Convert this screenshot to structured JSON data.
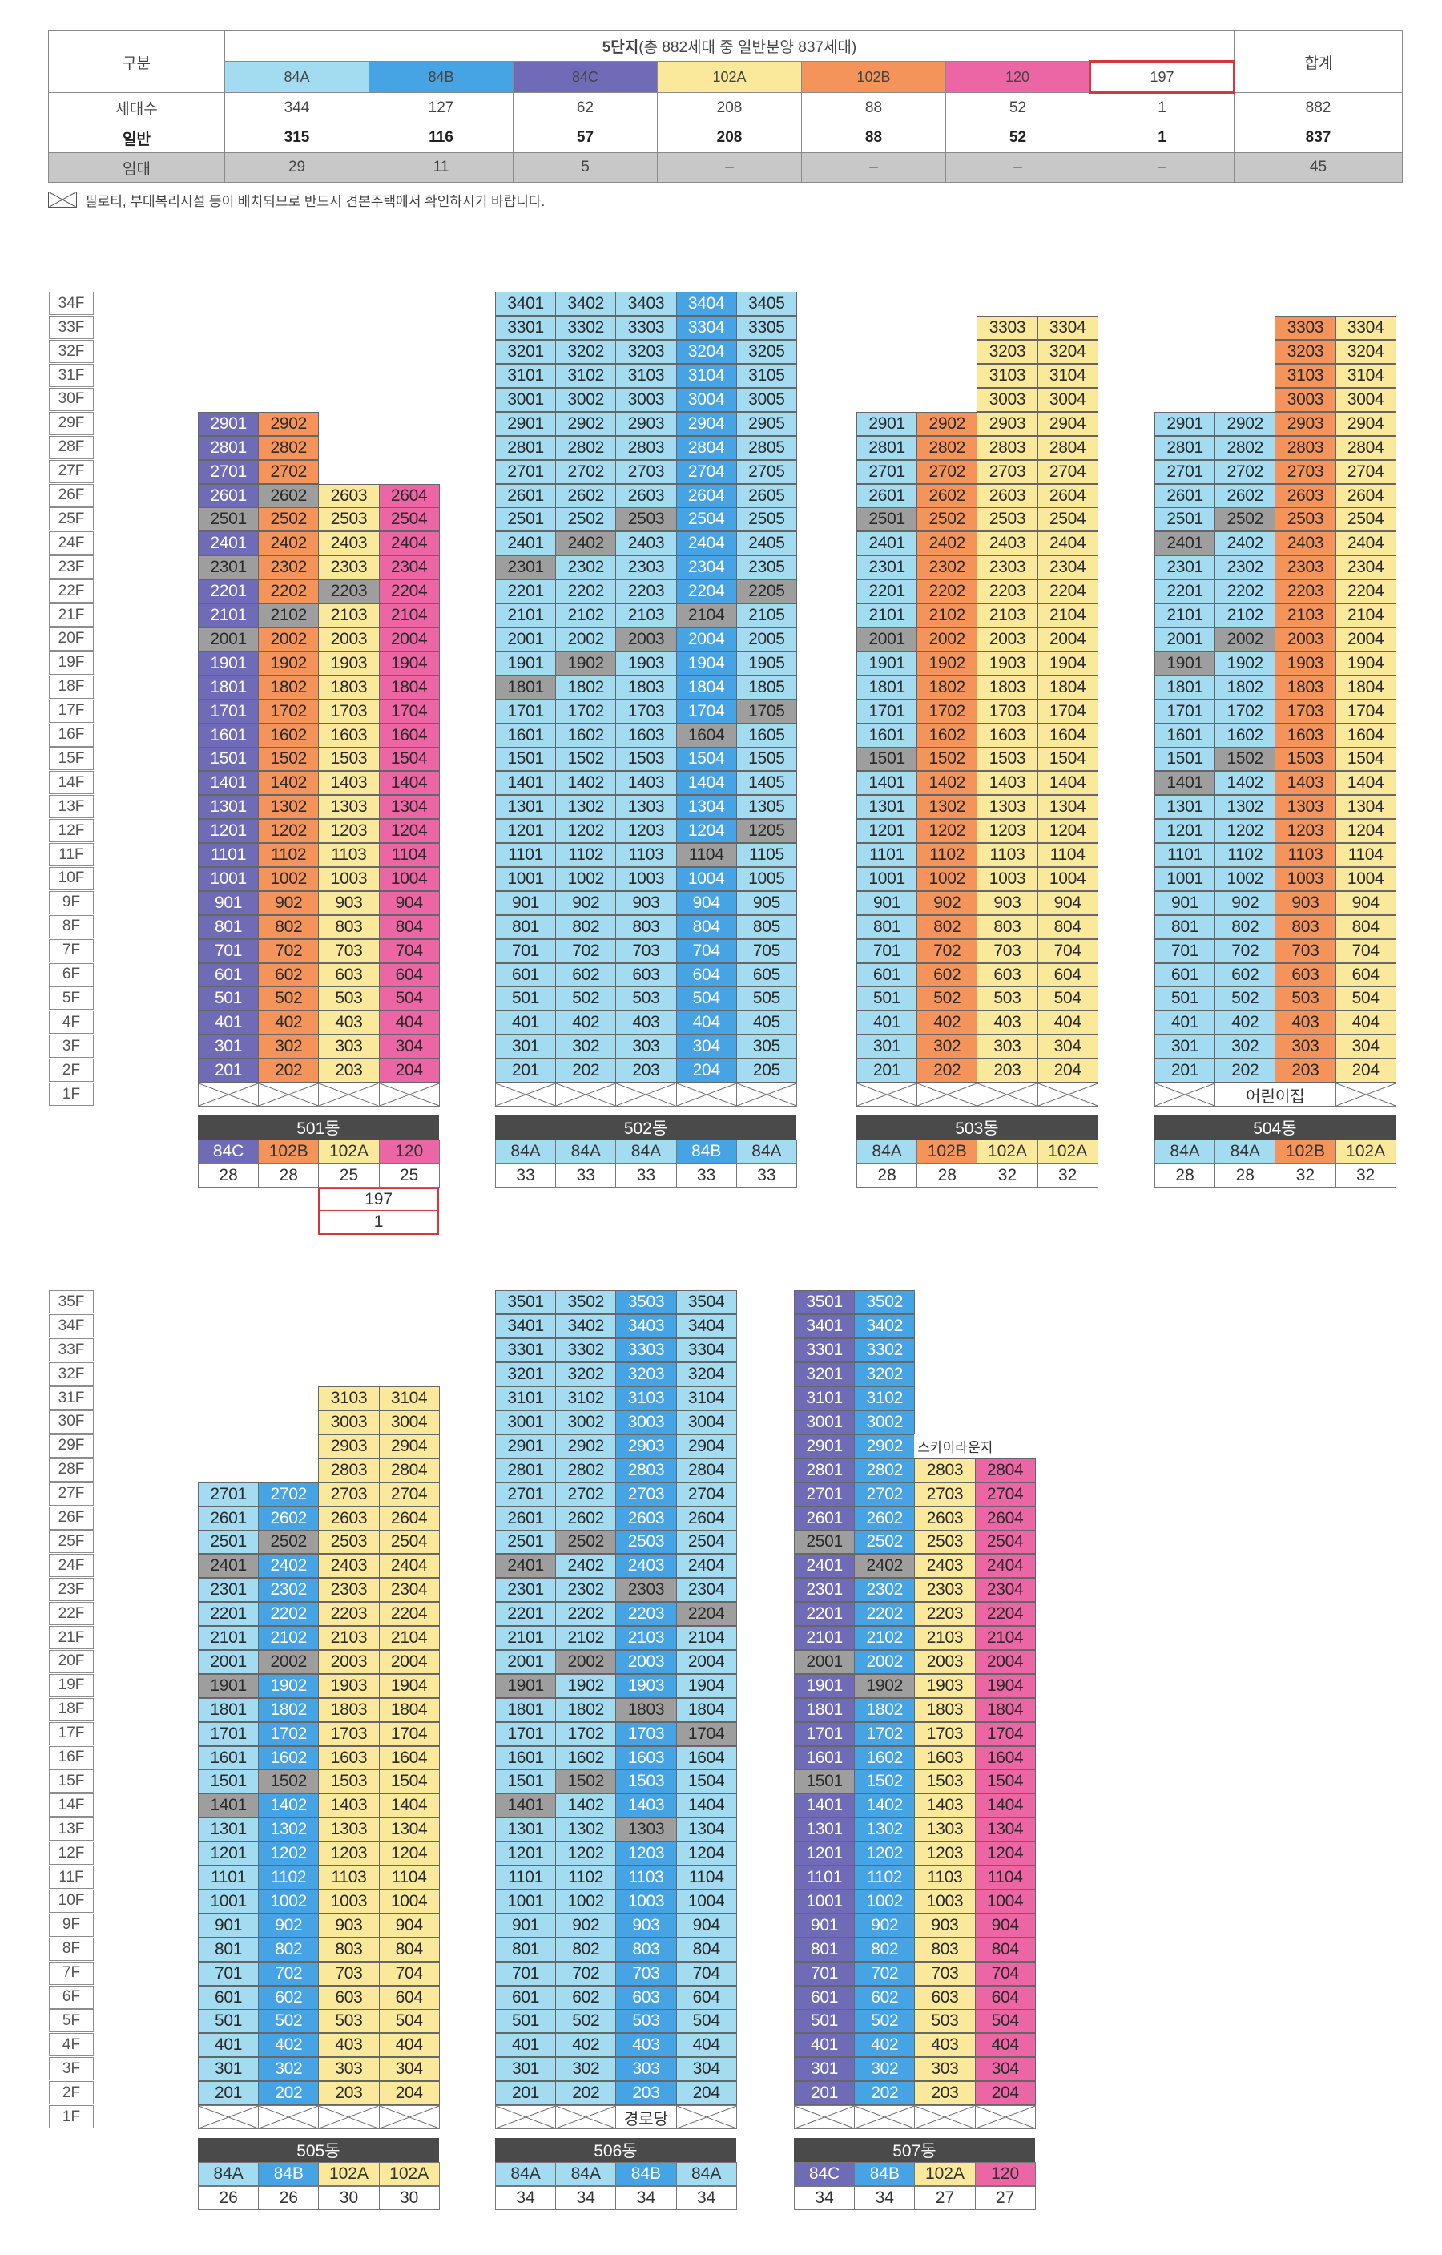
{
  "colors": {
    "84A": "#a3dbf1",
    "84B": "#47a4e4",
    "84C": "#706bb6",
    "102A": "#fbe99b",
    "102B": "#f4935a",
    "120": "#ec66a6",
    "197": "#ffffff",
    "rental": "#9e9e9e",
    "border_197": "#d4373c"
  },
  "summary": {
    "gubun_label": "구분",
    "header_title_bold": "5단지",
    "header_title_rest": "(총 882세대 중 일반분양 837세대)",
    "total_label": "합계",
    "types": [
      "84A",
      "84B",
      "84C",
      "102A",
      "102B",
      "120",
      "197"
    ],
    "rows": [
      {
        "label": "세대수",
        "values": [
          "344",
          "127",
          "62",
          "208",
          "88",
          "52",
          "1"
        ],
        "total": "882",
        "style": "normal"
      },
      {
        "label": "일반",
        "values": [
          "315",
          "116",
          "57",
          "208",
          "88",
          "52",
          "1"
        ],
        "total": "837",
        "style": "bold"
      },
      {
        "label": "임대",
        "values": [
          "29",
          "11",
          "5",
          "–",
          "–",
          "–",
          "–"
        ],
        "total": "45",
        "style": "gray"
      }
    ]
  },
  "notice": "필로티, 부대복리시설 등이 배치되므로 반드시 견본주택에서 확인하시기 바랍니다.",
  "floor_labels": {
    "top": [
      "34F",
      "33F",
      "32F",
      "31F",
      "30F",
      "29F",
      "28F",
      "27F",
      "26F",
      "25F",
      "24F",
      "23F",
      "22F",
      "21F",
      "20F",
      "19F",
      "18F",
      "17F",
      "16F",
      "15F",
      "14F",
      "13F",
      "12F",
      "11F",
      "10F",
      "9F",
      "8F",
      "7F",
      "6F",
      "5F",
      "4F",
      "3F",
      "2F",
      "1F"
    ],
    "bottom": [
      "35F",
      "34F",
      "33F",
      "32F",
      "31F",
      "30F",
      "29F",
      "28F",
      "27F",
      "26F",
      "25F",
      "24F",
      "23F",
      "22F",
      "21F",
      "20F",
      "19F",
      "18F",
      "17F",
      "16F",
      "15F",
      "14F",
      "13F",
      "12F",
      "11F",
      "10F",
      "9F",
      "8F",
      "7F",
      "6F",
      "5F",
      "4F",
      "3F",
      "2F",
      "1F"
    ]
  },
  "buildings": [
    {
      "name": "501동",
      "grid": "top",
      "types": [
        "84C",
        "102B",
        "102A",
        "120"
      ],
      "floors": [
        29,
        29,
        26,
        26
      ],
      "span": [
        [
          27,
          2,
          2
        ]
      ],
      "rental": [
        "2501",
        "2001",
        "2301",
        "2102",
        "2602",
        "2203"
      ],
      "summary": [
        {
          "type": "84C",
          "count": "28"
        },
        {
          "type": "102B",
          "count": "28"
        },
        {
          "type": "102A",
          "count": "25"
        },
        {
          "type": "120",
          "count": "25"
        }
      ],
      "extra": {
        "type": "197",
        "count": "1"
      }
    },
    {
      "name": "502동",
      "grid": "top",
      "types": [
        "84A",
        "84A",
        "84A",
        "84B",
        "84A"
      ],
      "floors": [
        34,
        34,
        34,
        34,
        34
      ],
      "rental": [
        "2503",
        "2402",
        "2301",
        "1902",
        "1801",
        "2205",
        "2003",
        "1705",
        "1205",
        "1104",
        "1604",
        "2104"
      ],
      "summary": [
        {
          "type": "84A",
          "count": "33"
        },
        {
          "type": "84A",
          "count": "33"
        },
        {
          "type": "84A",
          "count": "33"
        },
        {
          "type": "84B",
          "count": "33"
        },
        {
          "type": "84A",
          "count": "33"
        }
      ]
    },
    {
      "name": "503동",
      "grid": "top",
      "types": [
        "84A",
        "102B",
        "102A",
        "102A"
      ],
      "floors": [
        29,
        29,
        33,
        33
      ],
      "rental": [
        "2501",
        "2001",
        "1501"
      ],
      "summary": [
        {
          "type": "84A",
          "count": "28"
        },
        {
          "type": "102B",
          "count": "28"
        },
        {
          "type": "102A",
          "count": "32"
        },
        {
          "type": "102A",
          "count": "32"
        }
      ]
    },
    {
      "name": "504동",
      "grid": "top",
      "types": [
        "84A",
        "84A",
        "102B",
        "102A"
      ],
      "floors": [
        29,
        29,
        33,
        33
      ],
      "rental": [
        "2502",
        "2401",
        "2002",
        "1901",
        "1502",
        "1401"
      ],
      "pilotis_label": "어린이집",
      "pilotis_span": [
        1,
        3
      ],
      "summary": [
        {
          "type": "84A",
          "count": "28"
        },
        {
          "type": "84A",
          "count": "28"
        },
        {
          "type": "102B",
          "count": "32"
        },
        {
          "type": "102A",
          "count": "32"
        }
      ]
    },
    {
      "name": "505동",
      "grid": "bottom",
      "types": [
        "84A",
        "84B",
        "102A",
        "102A"
      ],
      "floors": [
        27,
        27,
        31,
        31
      ],
      "rental": [
        "2401",
        "1901",
        "1401",
        "2002",
        "2502",
        "1502"
      ],
      "summary": [
        {
          "type": "84A",
          "count": "26"
        },
        {
          "type": "84B",
          "count": "26"
        },
        {
          "type": "102A",
          "count": "30"
        },
        {
          "type": "102A",
          "count": "30"
        }
      ]
    },
    {
      "name": "506동",
      "grid": "bottom",
      "types": [
        "84A",
        "84A",
        "84B",
        "84A"
      ],
      "floors": [
        35,
        35,
        35,
        35
      ],
      "rental": [
        "2401",
        "1901",
        "1401",
        "2502",
        "2002",
        "1502",
        "2303",
        "1803",
        "1303",
        "2204",
        "1704"
      ],
      "pilotis_label": "경로당",
      "pilotis_span": [
        2,
        3
      ],
      "summary": [
        {
          "type": "84A",
          "count": "34"
        },
        {
          "type": "84A",
          "count": "34"
        },
        {
          "type": "84B",
          "count": "34"
        },
        {
          "type": "84A",
          "count": "34"
        }
      ]
    },
    {
      "name": "507동",
      "grid": "bottom",
      "types": [
        "84C",
        "84B",
        "102A",
        "120"
      ],
      "floors": [
        35,
        35,
        28,
        28
      ],
      "rental": [
        "2501",
        "2001",
        "1501",
        "2402",
        "1902"
      ],
      "annotation": "스카이라운지",
      "summary": [
        {
          "type": "84C",
          "count": "34"
        },
        {
          "type": "84B",
          "count": "34"
        },
        {
          "type": "102A",
          "count": "27"
        },
        {
          "type": "120",
          "count": "27"
        }
      ]
    }
  ]
}
